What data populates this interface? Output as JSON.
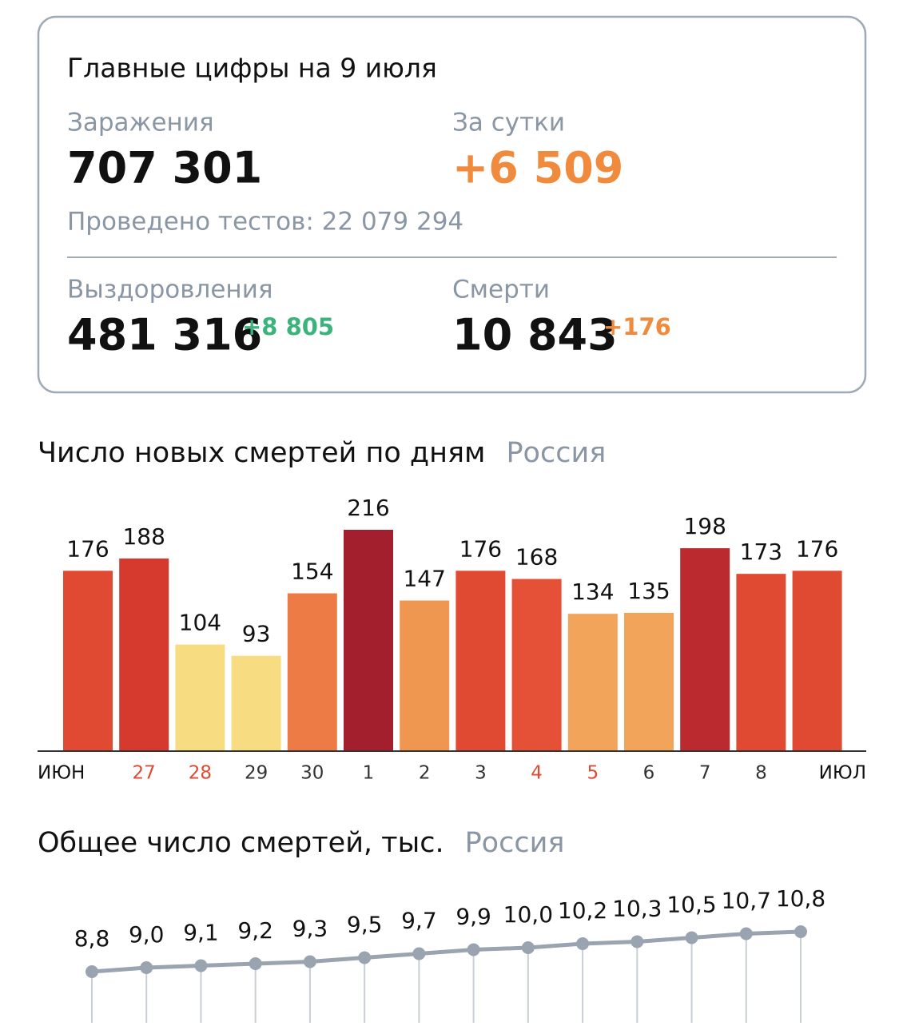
{
  "card": {
    "title": "Главные цифры на 9 июля",
    "infections": {
      "label": "Заражения",
      "value": "707 301"
    },
    "daily": {
      "label": "За сутки",
      "value": "+6 509"
    },
    "tests": "Проведено тестов: 22 079 294",
    "recoveries": {
      "label": "Выздоровления",
      "value": "481 316",
      "delta": "+8 805"
    },
    "deaths": {
      "label": "Смерти",
      "value": "10 843",
      "delta": "+176"
    }
  },
  "chart_data": [
    {
      "type": "bar",
      "title": "Число новых смертей по дням",
      "subtitle": "Россия",
      "categories": [
        null,
        "27",
        "28",
        "29",
        "30",
        "1",
        "2",
        "3",
        "4",
        "5",
        "6",
        "7",
        "8",
        null
      ],
      "month_labels": [
        "ИЮН",
        "ИЮЛ"
      ],
      "values": [
        176,
        188,
        104,
        93,
        154,
        216,
        147,
        176,
        168,
        134,
        135,
        198,
        173,
        176
      ],
      "colors": [
        "#e04a33",
        "#d63a2e",
        "#f7dc82",
        "#f7dc82",
        "#ed7b45",
        "#a31f2e",
        "#ef9650",
        "#e04a33",
        "#e45137",
        "#f2a55a",
        "#f2a55a",
        "#bb2a2e",
        "#e04a33",
        "#e04a33"
      ],
      "tick_colors": [
        null,
        "#e04a33",
        "#e04a33",
        "#333333",
        "#333333",
        "#333333",
        "#333333",
        "#333333",
        "#e04a33",
        "#e04a33",
        "#333333",
        "#333333",
        "#333333",
        null
      ]
    },
    {
      "type": "line",
      "title": "Общее число смертей, тыс.",
      "subtitle": "Россия",
      "color": "#9aa3b0",
      "values": [
        8.8,
        9.0,
        9.1,
        9.2,
        9.3,
        9.5,
        9.7,
        9.9,
        10.0,
        10.2,
        10.3,
        10.5,
        10.7,
        10.8
      ],
      "value_labels": [
        "8,8",
        "9,0",
        "9,1",
        "9,2",
        "9,3",
        "9,5",
        "9,7",
        "9,9",
        "10,0",
        "10,2",
        "10,3",
        "10,5",
        "10,7",
        "10,8"
      ]
    }
  ]
}
